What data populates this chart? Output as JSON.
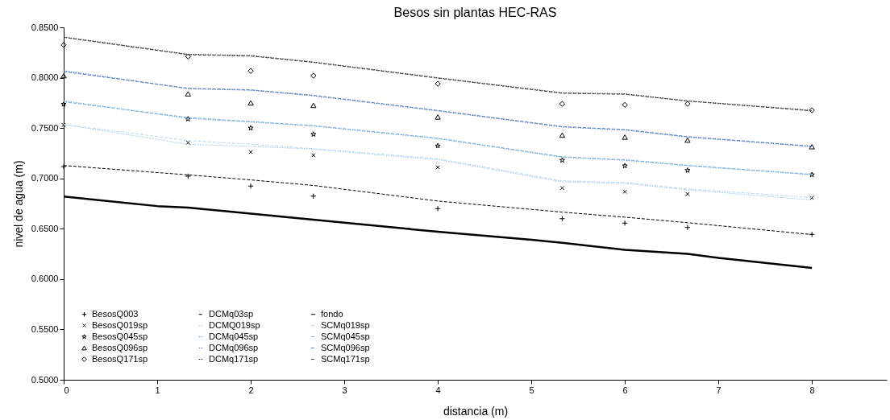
{
  "chart_data": {
    "type": "line",
    "title": "Besos sin plantas HEC-RAS",
    "xlabel": "distancia (m)",
    "ylabel": "nivel de agua (m)",
    "x": [
      0,
      1.33,
      2,
      2.67,
      4,
      5.33,
      6,
      6.67,
      8
    ],
    "xlim": [
      0,
      8.8
    ],
    "xticks": [
      0,
      1,
      2,
      3,
      4,
      5,
      6,
      7,
      8
    ],
    "ylim": [
      0.5,
      0.85
    ],
    "yticks": [
      {
        "value": 0.5,
        "label": "0.5000"
      },
      {
        "value": 0.55,
        "label": "0.5500"
      },
      {
        "value": 0.6,
        "label": "0.6000"
      },
      {
        "value": 0.65,
        "label": "0.6500"
      },
      {
        "value": 0.7,
        "label": "0.7000"
      },
      {
        "value": 0.75,
        "label": "0.7500"
      },
      {
        "value": 0.8,
        "label": "0.8000"
      },
      {
        "value": 0.85,
        "label": "0.8500"
      }
    ],
    "grid": false,
    "legend": "bottom left",
    "series": [
      {
        "name": "BesosQ003",
        "type": "scatter",
        "marker": "cross",
        "color": "#000000",
        "values": [
          0.7117,
          0.7022,
          0.6924,
          0.6824,
          0.67,
          0.66,
          0.6556,
          0.6513,
          0.6444
        ]
      },
      {
        "name": "BesosQ019sp",
        "type": "scatter",
        "marker": "x",
        "color": "#000000",
        "values": [
          0.753,
          0.7355,
          0.7263,
          0.723,
          0.711,
          0.6904,
          0.6867,
          0.6844,
          0.6807
        ]
      },
      {
        "name": "BesosQ045sp",
        "type": "scatter",
        "marker": "star",
        "color": "#000000",
        "values": [
          0.7737,
          0.759,
          0.75,
          0.7438,
          0.7323,
          0.718,
          0.7125,
          0.708,
          0.7036
        ]
      },
      {
        "name": "BesosQ096sp",
        "type": "scatter",
        "marker": "triangle",
        "color": "#000000",
        "values": [
          0.802,
          0.784,
          0.775,
          0.7725,
          0.761,
          0.743,
          0.741,
          0.738,
          0.7315
        ]
      },
      {
        "name": "BesosQ171sp",
        "type": "scatter",
        "marker": "diamond",
        "color": "#000000",
        "values": [
          0.8325,
          0.821,
          0.8067,
          0.802,
          0.794,
          0.774,
          0.773,
          0.774,
          0.7676
        ]
      },
      {
        "name": "DCMq03sp",
        "line_style": "dashed",
        "color": "#000000",
        "values": [
          0.7128,
          0.7035,
          0.6985,
          0.693,
          0.6775,
          0.6665,
          0.6615,
          0.656,
          0.6442
        ]
      },
      {
        "name": "DCMQ019sp",
        "line_style": "dotted",
        "color": "#9dc3e6",
        "values": [
          0.7536,
          0.7338,
          0.7318,
          0.729,
          0.7185,
          0.6965,
          0.695,
          0.6886,
          0.6786
        ]
      },
      {
        "name": "DCMq045sp",
        "line_style": "dotted",
        "color": "#5b9bd5",
        "values": [
          0.777,
          0.7596,
          0.756,
          0.752,
          0.7395,
          0.721,
          0.718,
          0.7126,
          0.7036
        ]
      },
      {
        "name": "DCMq096sp",
        "line_style": "dotted",
        "color": "#4472c4",
        "values": [
          0.807,
          0.789,
          0.7875,
          0.782,
          0.767,
          0.751,
          0.748,
          0.741,
          0.7315
        ]
      },
      {
        "name": "DCMq171sp",
        "line_style": "dotted",
        "color": "#202020",
        "values": [
          0.8405,
          0.8233,
          0.822,
          0.8156,
          0.8,
          0.785,
          0.784,
          0.777,
          0.7676
        ]
      },
      {
        "name": "fondo",
        "line_style": "solid",
        "color": "#000000",
        "x": [
          0,
          1,
          1.33,
          2,
          3,
          4,
          5,
          5.33,
          6,
          6.67,
          7,
          8
        ],
        "values": [
          0.682,
          0.6725,
          0.671,
          0.665,
          0.656,
          0.647,
          0.639,
          0.636,
          0.629,
          0.625,
          0.621,
          0.611
        ]
      },
      {
        "name": "SCMq019sp",
        "line_style": "dashed",
        "color": "#bdd7ee",
        "values": [
          0.7536,
          0.7375,
          0.734,
          0.7295,
          0.7195,
          0.6975,
          0.696,
          0.6895,
          0.681
        ]
      },
      {
        "name": "SCMq045sp",
        "line_style": "dashed",
        "color": "#7aaee0",
        "values": [
          0.776,
          0.7605,
          0.7565,
          0.7525,
          0.74,
          0.7215,
          0.7185,
          0.713,
          0.704
        ]
      },
      {
        "name": "SCMq096sp",
        "line_style": "dashed",
        "color": "#5580c0",
        "values": [
          0.806,
          0.7895,
          0.788,
          0.7825,
          0.7675,
          0.7515,
          0.7485,
          0.7415,
          0.732
        ]
      },
      {
        "name": "SCMq171sp",
        "line_style": "dashed",
        "color": "#404040",
        "values": [
          0.84,
          0.8228,
          0.8215,
          0.8152,
          0.7995,
          0.7845,
          0.7835,
          0.7768,
          0.767
        ]
      }
    ]
  }
}
